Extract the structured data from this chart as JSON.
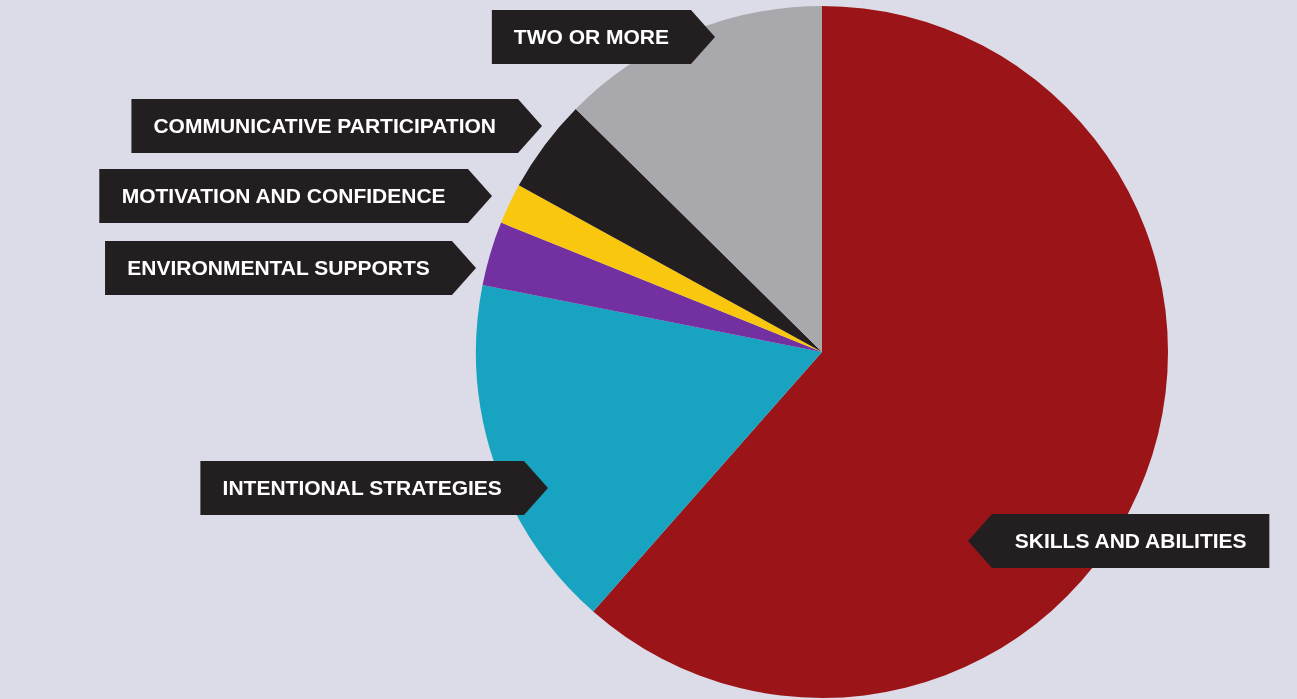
{
  "chart_data": {
    "type": "pie",
    "categories": [
      "SKILLS AND ABILITIES",
      "INTENTIONAL STRATEGIES",
      "ENVIRONMENTAL SUPPORTS",
      "MOTIVATION AND CONFIDENCE",
      "COMMUNICATIVE PARTICIPATION",
      "TWO OR MORE"
    ],
    "values": [
      61.5,
      16.6,
      3,
      1.9,
      4.4,
      12.6
    ],
    "colors": [
      "#9b1418",
      "#18a3c0",
      "#7330a0",
      "#f9c80e",
      "#231f20",
      "#a9a9ad"
    ],
    "legend": false
  }
}
